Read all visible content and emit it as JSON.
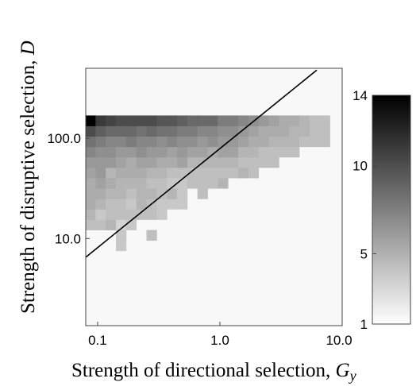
{
  "chart_data": {
    "type": "heatmap",
    "title": "",
    "xlabel": "Strength of directional selection, ",
    "xlabel_var": "G",
    "xlabel_sub": "y",
    "ylabel": "Strength of disruptive selection, ",
    "ylabel_var": "D",
    "x_scale": "log",
    "y_scale": "log",
    "xlim": [
      0.08,
      10.0
    ],
    "ylim": [
      1.35,
      500
    ],
    "x_ticks": [
      {
        "value": 0.1,
        "label": "0.1"
      },
      {
        "value": 1.0,
        "label": "1.0"
      },
      {
        "value": 10.0,
        "label": "10.0"
      }
    ],
    "y_ticks": [
      {
        "value": 10.0,
        "label": "10.0"
      },
      {
        "value": 100.0,
        "label": "100.0"
      }
    ],
    "colorbar": {
      "min": 1,
      "max": 14,
      "colormap": "white-to-black",
      "ticks": [
        {
          "value": 1,
          "label": "1"
        },
        {
          "value": 5,
          "label": "5"
        },
        {
          "value": 10,
          "label": "10"
        },
        {
          "value": 14,
          "label": "14"
        }
      ]
    },
    "background_value": 1,
    "grid": {
      "x_log_min": -1.1,
      "x_log_step": 0.0833,
      "y_log_min": 0.15,
      "y_log_step": 0.1039
    },
    "heatmap_rows": [
      {
        "row": 0,
        "cells": []
      },
      {
        "row": 1,
        "cells": []
      },
      {
        "row": 2,
        "cells": []
      },
      {
        "row": 3,
        "cells": []
      },
      {
        "row": 4,
        "cells": []
      },
      {
        "row": 5,
        "cells": []
      },
      {
        "row": 6,
        "cells": []
      },
      {
        "row": 7,
        "cells": [
          [
            3,
            3.5
          ]
        ]
      },
      {
        "row": 8,
        "cells": [
          [
            3,
            3.5
          ],
          [
            6,
            4
          ]
        ]
      },
      {
        "row": 9,
        "cells": [
          [
            0,
            4
          ],
          [
            1,
            4
          ],
          [
            2,
            4.5
          ],
          [
            3,
            3
          ],
          [
            4,
            3.5
          ]
        ]
      },
      {
        "row": 10,
        "cells": [
          [
            0,
            4.5
          ],
          [
            1,
            3.5
          ],
          [
            2,
            4
          ],
          [
            3,
            4
          ],
          [
            4,
            4
          ],
          [
            5,
            4
          ],
          [
            6,
            4
          ],
          [
            7,
            3.5
          ]
        ]
      },
      {
        "row": 11,
        "cells": [
          [
            0,
            5
          ],
          [
            1,
            4.5
          ],
          [
            2,
            4
          ],
          [
            3,
            4
          ],
          [
            4,
            3.5
          ],
          [
            5,
            4.5
          ],
          [
            6,
            4
          ],
          [
            7,
            3.5
          ],
          [
            8,
            3.5
          ],
          [
            9,
            3.5
          ]
        ]
      },
      {
        "row": 12,
        "cells": [
          [
            0,
            5
          ],
          [
            1,
            5
          ],
          [
            2,
            4.5
          ],
          [
            3,
            4.5
          ],
          [
            4,
            4
          ],
          [
            5,
            4.5
          ],
          [
            6,
            4.5
          ],
          [
            7,
            4
          ],
          [
            8,
            4.5
          ],
          [
            9,
            3.5
          ],
          [
            11,
            4
          ]
        ]
      },
      {
        "row": 13,
        "cells": [
          [
            0,
            5
          ],
          [
            1,
            5.5
          ],
          [
            2,
            5
          ],
          [
            3,
            4.5
          ],
          [
            4,
            4.5
          ],
          [
            5,
            4.5
          ],
          [
            6,
            4
          ],
          [
            7,
            4
          ],
          [
            8,
            3.5
          ],
          [
            9,
            3.5
          ],
          [
            10,
            4
          ],
          [
            11,
            4
          ],
          [
            12,
            4
          ],
          [
            13,
            4.5
          ]
        ]
      },
      {
        "row": 14,
        "cells": [
          [
            0,
            5.5
          ],
          [
            1,
            6
          ],
          [
            2,
            4.5
          ],
          [
            3,
            5
          ],
          [
            4,
            5
          ],
          [
            5,
            5
          ],
          [
            6,
            4.5
          ],
          [
            7,
            4.5
          ],
          [
            8,
            4
          ],
          [
            9,
            4
          ],
          [
            10,
            4
          ],
          [
            11,
            4
          ],
          [
            12,
            4
          ],
          [
            13,
            4
          ],
          [
            14,
            4
          ],
          [
            15,
            4.5
          ],
          [
            16,
            4
          ]
        ]
      },
      {
        "row": 15,
        "cells": [
          [
            0,
            6
          ],
          [
            1,
            6
          ],
          [
            2,
            6
          ],
          [
            3,
            5.5
          ],
          [
            4,
            5
          ],
          [
            5,
            5.5
          ],
          [
            6,
            5.5
          ],
          [
            7,
            5
          ],
          [
            8,
            5
          ],
          [
            9,
            5.5
          ],
          [
            10,
            4.5
          ],
          [
            11,
            4.5
          ],
          [
            12,
            4.5
          ],
          [
            13,
            4.5
          ],
          [
            14,
            4.5
          ],
          [
            15,
            4
          ],
          [
            16,
            4
          ],
          [
            17,
            4
          ],
          [
            18,
            4
          ]
        ]
      },
      {
        "row": 16,
        "cells": [
          [
            0,
            7
          ],
          [
            1,
            6.5
          ],
          [
            2,
            6.5
          ],
          [
            3,
            6
          ],
          [
            4,
            6
          ],
          [
            5,
            6.5
          ],
          [
            6,
            6
          ],
          [
            7,
            6
          ],
          [
            8,
            5.5
          ],
          [
            9,
            6
          ],
          [
            10,
            5.5
          ],
          [
            11,
            5.5
          ],
          [
            12,
            5
          ],
          [
            13,
            5.5
          ],
          [
            14,
            5.5
          ],
          [
            15,
            4.5
          ],
          [
            16,
            4.5
          ],
          [
            17,
            4
          ],
          [
            18,
            4
          ],
          [
            19,
            4
          ],
          [
            20,
            4
          ]
        ]
      },
      {
        "row": 17,
        "cells": [
          [
            0,
            8
          ],
          [
            1,
            7.5
          ],
          [
            2,
            7
          ],
          [
            3,
            7
          ],
          [
            4,
            7.5
          ],
          [
            5,
            7
          ],
          [
            6,
            7
          ],
          [
            7,
            6.5
          ],
          [
            8,
            7
          ],
          [
            9,
            6.5
          ],
          [
            10,
            6.5
          ],
          [
            11,
            6
          ],
          [
            12,
            6.5
          ],
          [
            13,
            6
          ],
          [
            14,
            6
          ],
          [
            15,
            5.5
          ],
          [
            16,
            5
          ],
          [
            17,
            5
          ],
          [
            18,
            4.5
          ],
          [
            19,
            4.5
          ],
          [
            20,
            4.5
          ],
          [
            21,
            4
          ],
          [
            22,
            4
          ],
          [
            23,
            4
          ]
        ]
      },
      {
        "row": 18,
        "cells": [
          [
            0,
            10
          ],
          [
            1,
            9
          ],
          [
            2,
            8.5
          ],
          [
            3,
            8.5
          ],
          [
            4,
            8.5
          ],
          [
            5,
            8
          ],
          [
            6,
            8.5
          ],
          [
            7,
            8
          ],
          [
            8,
            8
          ],
          [
            9,
            7.5
          ],
          [
            10,
            7.5
          ],
          [
            11,
            7
          ],
          [
            12,
            7
          ],
          [
            13,
            6.5
          ],
          [
            14,
            6.5
          ],
          [
            15,
            6
          ],
          [
            16,
            5.5
          ],
          [
            17,
            5
          ],
          [
            18,
            5
          ],
          [
            19,
            5
          ],
          [
            20,
            4.5
          ],
          [
            21,
            4.5
          ],
          [
            22,
            4
          ],
          [
            23,
            4
          ]
        ]
      },
      {
        "row": 19,
        "cells": [
          [
            0,
            14
          ],
          [
            1,
            11
          ],
          [
            2,
            10.5
          ],
          [
            3,
            10
          ],
          [
            4,
            10
          ],
          [
            5,
            10
          ],
          [
            6,
            10
          ],
          [
            7,
            9.5
          ],
          [
            8,
            9.5
          ],
          [
            9,
            9
          ],
          [
            10,
            8.5
          ],
          [
            11,
            8.5
          ],
          [
            12,
            8.5
          ],
          [
            13,
            7.5
          ],
          [
            14,
            7.5
          ],
          [
            15,
            7
          ],
          [
            16,
            6.5
          ],
          [
            17,
            6
          ],
          [
            18,
            5.5
          ],
          [
            19,
            5
          ],
          [
            20,
            5
          ],
          [
            21,
            4.5
          ],
          [
            22,
            4
          ],
          [
            23,
            4
          ]
        ]
      }
    ],
    "boundary_line": {
      "x": [
        0.08,
        6.2
      ],
      "y": [
        6.5,
        480
      ]
    }
  }
}
